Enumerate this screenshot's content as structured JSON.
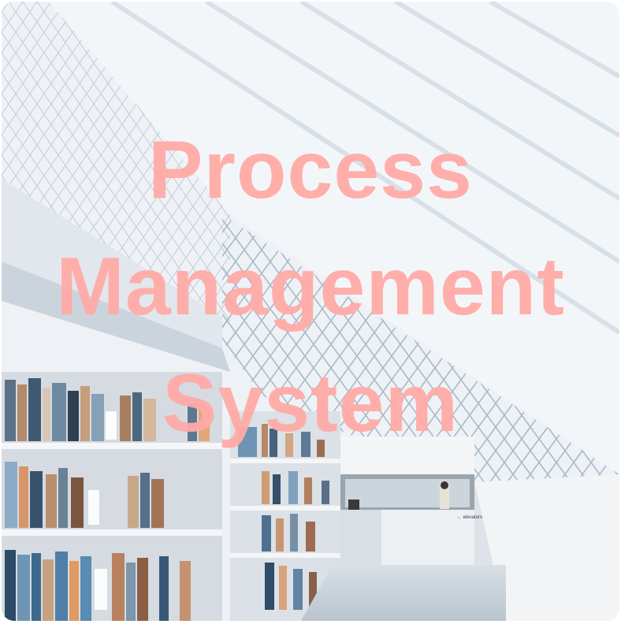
{
  "title": {
    "lines": [
      "Process",
      "Management",
      "System"
    ]
  },
  "background": {
    "sign_text": "← elevators"
  },
  "colors": {
    "title": "#ffaaa5",
    "sky": "#eef2f6",
    "steel": "#8fa3b5"
  }
}
